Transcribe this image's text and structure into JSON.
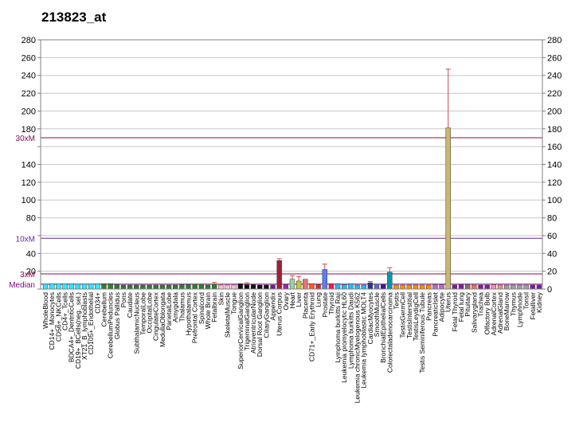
{
  "chart_data": {
    "type": "bar",
    "title": "213823_at",
    "ylim": [
      0,
      280
    ],
    "yticks": [
      0,
      20,
      40,
      60,
      80,
      100,
      120,
      140,
      160,
      180,
      200,
      220,
      240,
      260,
      280
    ],
    "left_tick_labels": [
      "",
      "20",
      "40",
      "",
      "80",
      "100",
      "120",
      "140",
      "",
      "180",
      "200",
      "220",
      "240",
      "260",
      "280"
    ],
    "right_tick_labels": [
      "0",
      "20",
      "40",
      "60",
      "80",
      "100",
      "120",
      "140",
      "160",
      "180",
      "200",
      "220",
      "240",
      "260",
      "280"
    ],
    "reference_lines": [
      {
        "label": "30xM",
        "value": 170,
        "color": "#8b0a50"
      },
      {
        "label": "10xM",
        "value": 57,
        "color": "#5a2ca0"
      },
      {
        "label": "3xM",
        "value": 17,
        "color": "#8b0a50"
      },
      {
        "label": "Median",
        "value": 5.5,
        "color": "#7a0a7a"
      }
    ],
    "categories": [
      "WholeBlood",
      "CD14+_Monocytes",
      "CD56+_NKCells",
      "CD4+_Tcells",
      "BDCA4+_DentriticCells",
      "CD19+_BCells(neg._sel.)",
      "XT21_B_lymphoblasts",
      "CD105+_Endothelial",
      "CD34+",
      "Cerebellum",
      "CerebellumPeduncles",
      "Globus Pallidus",
      "Pons",
      "Caudate",
      "SubthalamicNucleus",
      "TemporalLobe",
      "OccipitalLobe",
      "CingulateCortex",
      "MedullaOblongata",
      "ParietalLobe",
      "Amygdala",
      "Thalamus",
      "Hypothalamus",
      "Prefrontal Cortex",
      "Spinalcord",
      "Whole Brain",
      "Fetalbrain",
      "Skin",
      "SkeletalMuscle",
      "Tongue",
      "SuperiorCervicalGanglion",
      "TrigeminalGanglion",
      "AtrioventricularNode",
      "Dorsal Root Ganglion",
      "CiliaryGanglion",
      "Appendix",
      "Uterus Corpus",
      "Ovary",
      "Heart",
      "Liver",
      "Placenta",
      "CD71+_Early Erythroid",
      "Lung",
      "Prostate",
      "Thyroid",
      "Lymphoma burkitts Raji",
      "Leukemia promyelocytic HL60",
      "Lymphoma burkitts Daudi",
      "Leukemia chronicMyelogenous K562",
      "Leukemia lymphoblastic MOLT4",
      "CardiacMyocytes",
      "SmoothMuscle",
      "BronchialEpithelialCells",
      "Colorectaladenocarcinoma",
      "Testis",
      "TestisGermCell",
      "TestisInterstitial",
      "TestisLeydigCell",
      "Testis Seminiferous Tubule",
      "Pancreas",
      "PancreaticIslet",
      "Adipocyte",
      "Uterus",
      "Fetal Thyroid",
      "Fetal lung",
      "Pituitary",
      "Salivarygland",
      "Trachea",
      "Olfactory Bulb",
      "AdrenalCortex",
      "AdrenalGland",
      "BoneMarrow",
      "Thymus",
      "Lymphnode",
      "Tonsil",
      "Fetalliver",
      "Kidney"
    ],
    "values": [
      5.5,
      6,
      6,
      6,
      6,
      5.5,
      5.5,
      5.5,
      6,
      6,
      6,
      5,
      4.5,
      4.5,
      4.5,
      4.5,
      4.5,
      4.5,
      4.5,
      4.5,
      4.5,
      5,
      5,
      5.5,
      5.5,
      4.5,
      5.5,
      4.5,
      4.5,
      4.5,
      6,
      5,
      5,
      4.5,
      4.5,
      4.5,
      32,
      5,
      11,
      9,
      11,
      6,
      5,
      22,
      6,
      6,
      5,
      6,
      4.5,
      4.5,
      7,
      5.5,
      5.5,
      19,
      4.5,
      4.5,
      4.5,
      4.5,
      4.5,
      4.5,
      5,
      5,
      181,
      4.5,
      5,
      5,
      4.5,
      4.5,
      4.5,
      5,
      4.5,
      4.5,
      4.5,
      4.5,
      4.5,
      4.5,
      4.5
    ],
    "errors": [
      0,
      0,
      0,
      0,
      0,
      0,
      0,
      0,
      0,
      0,
      0,
      0,
      0,
      0,
      0,
      0,
      0,
      0,
      0,
      0,
      0,
      0,
      0,
      0,
      0,
      0,
      2,
      0,
      0,
      0,
      0,
      2,
      0,
      0,
      0,
      0,
      2,
      0,
      4,
      5,
      0,
      0,
      0,
      6,
      0,
      0,
      0,
      0,
      0,
      0,
      1.5,
      0,
      0,
      5,
      0,
      0,
      0,
      0,
      0,
      0,
      0,
      0,
      66,
      0,
      0,
      0,
      0,
      0,
      0,
      0,
      0,
      0,
      0,
      0,
      0,
      0,
      0
    ],
    "colors": [
      "#2ee8ff",
      "#2ee8ff",
      "#2ee8ff",
      "#2ee8ff",
      "#2ee8ff",
      "#2ee8ff",
      "#2ee8ff",
      "#2ee8ff",
      "#2ee8ff",
      "#2e7d32",
      "#2e7d32",
      "#2e7d32",
      "#2e7d32",
      "#2e7d32",
      "#2e7d32",
      "#2e7d32",
      "#2e7d32",
      "#2e7d32",
      "#2e7d32",
      "#2e7d32",
      "#2e7d32",
      "#2e7d32",
      "#2e7d32",
      "#2e7d32",
      "#2e7d32",
      "#2e7d32",
      "#2e7d32",
      "#ffc0cb",
      "#ffc0cb",
      "#ffc0cb",
      "#111111",
      "#111111",
      "#111111",
      "#111111",
      "#111111",
      "#6a1b9a",
      "#a31d36",
      "#9c27b0",
      "#9bd2a8",
      "#c0ca33",
      "#e57373",
      "#ff5722",
      "#d32f2f",
      "#5c7cfa",
      "#ff1744",
      "#29b6f6",
      "#29b6f6",
      "#29b6f6",
      "#29b6f6",
      "#29b6f6",
      "#283593",
      "#5c6bc0",
      "#4a148c",
      "#0097a7",
      "#ff8f00",
      "#ff8f00",
      "#ff8f00",
      "#ff8f00",
      "#ff8f00",
      "#ff8f00",
      "#ba68c8",
      "#ba68c8",
      "#c9b870",
      "#7b1fa2",
      "#7b1fa2",
      "#8d6e63",
      "#ff7043",
      "#7b1fa2",
      "#7b1fa2",
      "#f48fb1",
      "#ff8a80",
      "#9e9e9e",
      "#9e9e9e",
      "#9e9e9e",
      "#9e9e9e",
      "#7b1fa2",
      "#7b1fa2"
    ]
  }
}
